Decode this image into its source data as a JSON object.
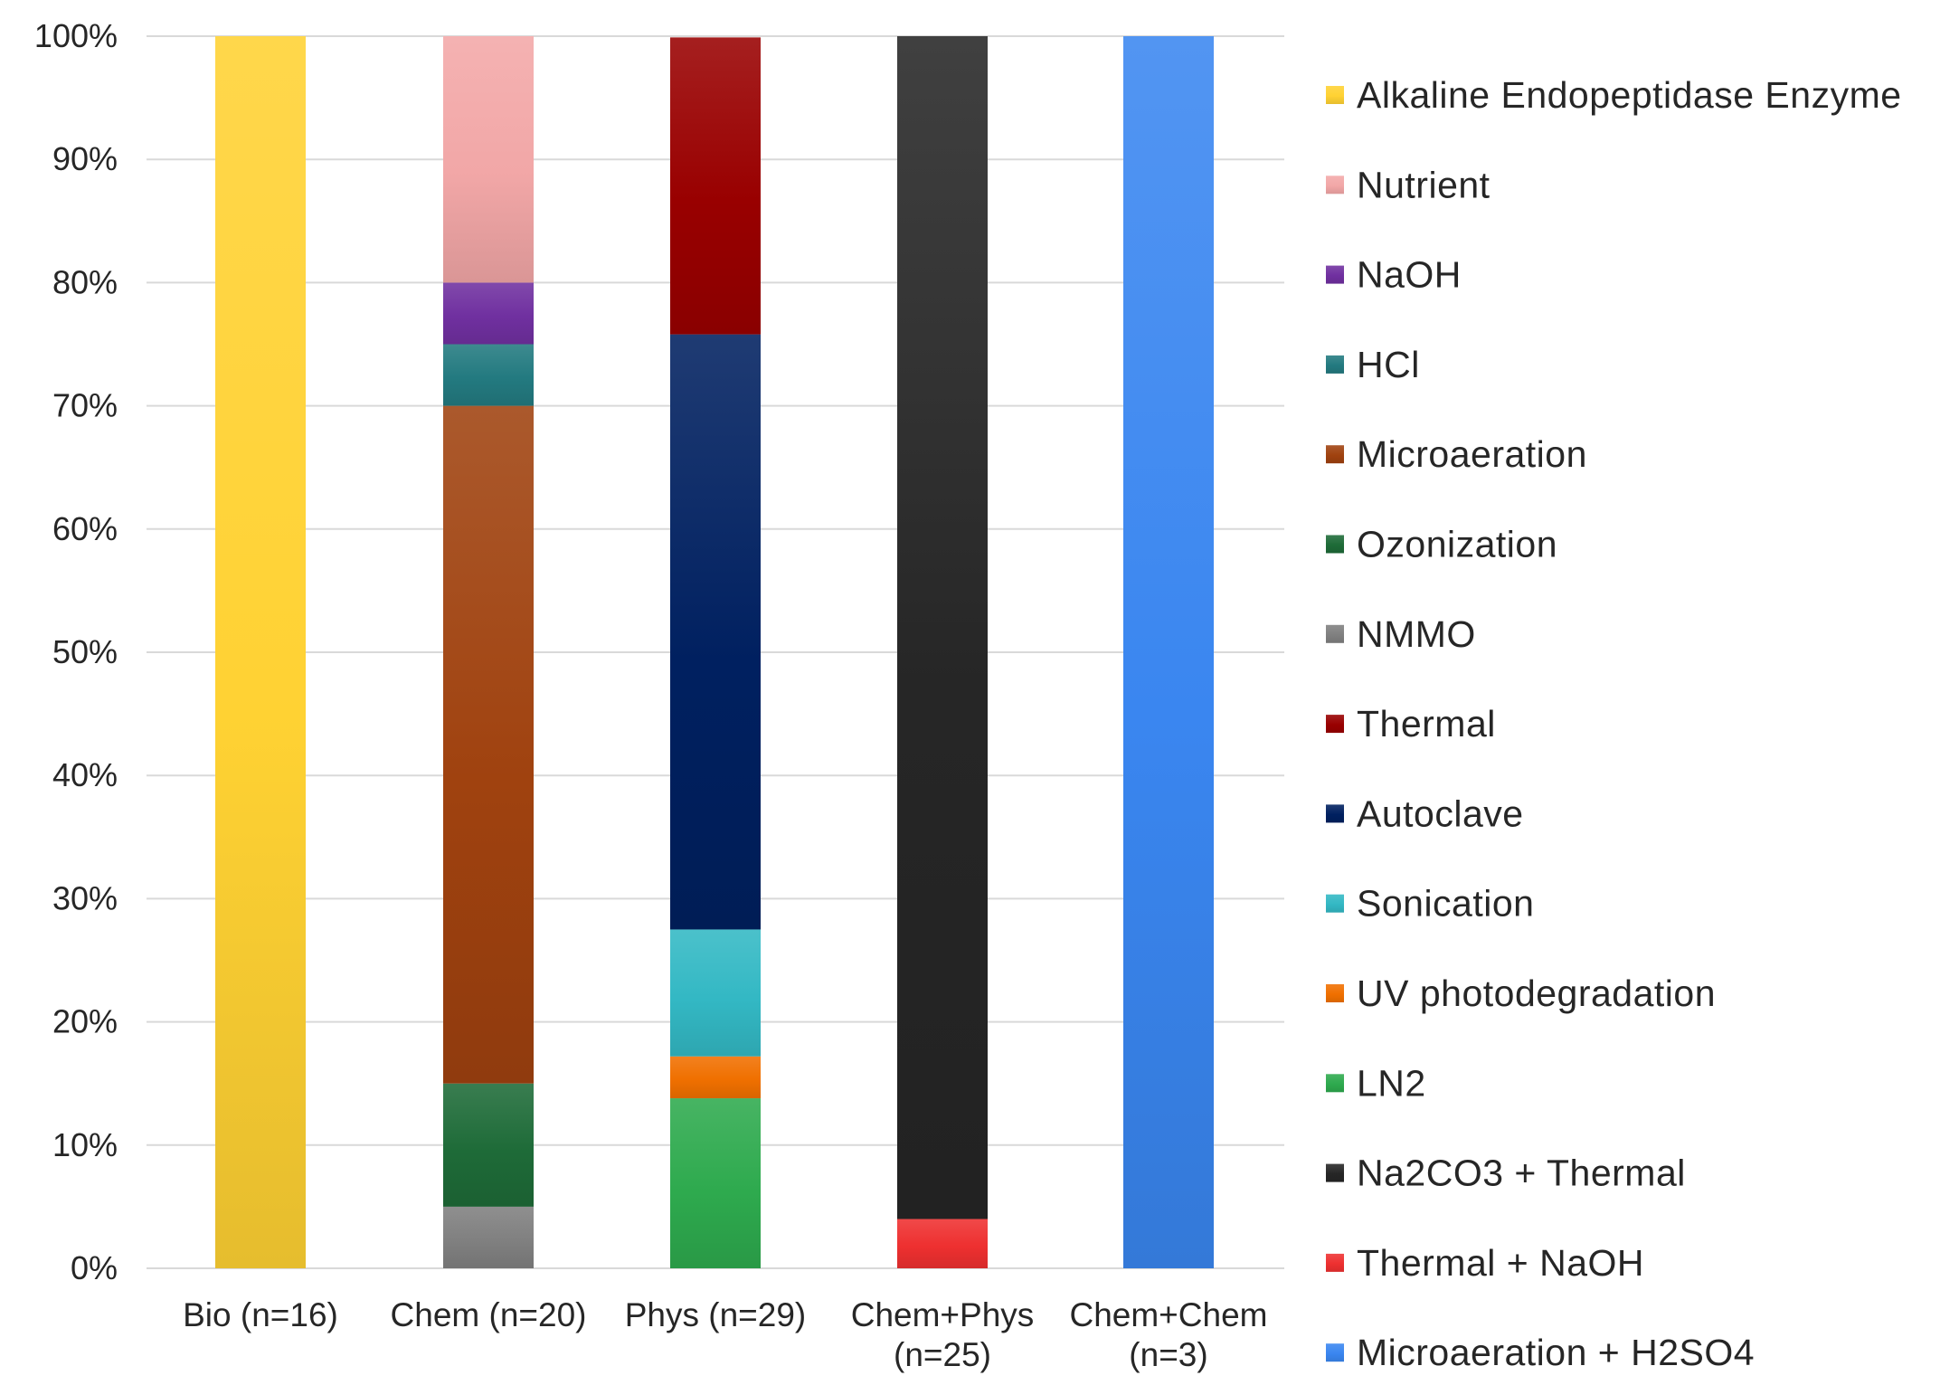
{
  "chart_data": {
    "type": "bar",
    "stacked": "percent",
    "title": "",
    "xlabel": "",
    "ylabel": "",
    "ylim": [
      0,
      100
    ],
    "yticks": [
      "0%",
      "10%",
      "20%",
      "30%",
      "40%",
      "50%",
      "60%",
      "70%",
      "80%",
      "90%",
      "100%"
    ],
    "grid": true,
    "legend_position": "right",
    "categories": [
      [
        "Bio (n=16)"
      ],
      [
        "Chem (n=20)"
      ],
      [
        "Phys (n=29)"
      ],
      [
        "Chem+Phys",
        "(n=25)"
      ],
      [
        "Chem+Chem",
        "(n=3)"
      ]
    ],
    "series": [
      {
        "name": "Alkaline Endopeptidase Enzyme",
        "color": "#ffd233",
        "values": [
          100,
          0,
          0,
          0,
          0
        ]
      },
      {
        "name": "Nutrient",
        "color": "#f2a7a7",
        "values": [
          0,
          20,
          0,
          0,
          0
        ]
      },
      {
        "name": "NaOH",
        "color": "#7030a0",
        "values": [
          0,
          5,
          0,
          0,
          0
        ]
      },
      {
        "name": "HCl",
        "color": "#237a80",
        "values": [
          0,
          5,
          0,
          0,
          0
        ]
      },
      {
        "name": "Microaeration",
        "color": "#a0420f",
        "values": [
          0,
          55,
          0,
          0,
          0
        ]
      },
      {
        "name": "Ozonization",
        "color": "#1e6b38",
        "values": [
          0,
          10,
          0,
          0,
          0
        ]
      },
      {
        "name": "NMMO",
        "color": "#808080",
        "values": [
          0,
          5,
          0,
          0,
          0
        ]
      },
      {
        "name": "Thermal",
        "color": "#990000",
        "values": [
          0,
          0,
          24.1,
          0,
          0
        ]
      },
      {
        "name": "Autoclave",
        "color": "#002060",
        "values": [
          0,
          0,
          48.3,
          0,
          0
        ]
      },
      {
        "name": "Sonication",
        "color": "#33b8c4",
        "values": [
          0,
          0,
          10.3,
          0,
          0
        ]
      },
      {
        "name": "UV photodegradation",
        "color": "#f07000",
        "values": [
          0,
          0,
          3.4,
          0,
          0
        ]
      },
      {
        "name": "LN2",
        "color": "#2eaa4e",
        "values": [
          0,
          0,
          13.8,
          0,
          0
        ]
      },
      {
        "name": "Na2CO3 + Thermal",
        "color": "#262626",
        "values": [
          0,
          0,
          0,
          96,
          0
        ]
      },
      {
        "name": "Thermal + NaOH",
        "color": "#ee3030",
        "values": [
          0,
          0,
          0,
          4,
          0
        ]
      },
      {
        "name": "Microaeration + H2SO4",
        "color": "#3a86f0",
        "values": [
          0,
          0,
          0,
          0,
          100
        ]
      }
    ]
  }
}
